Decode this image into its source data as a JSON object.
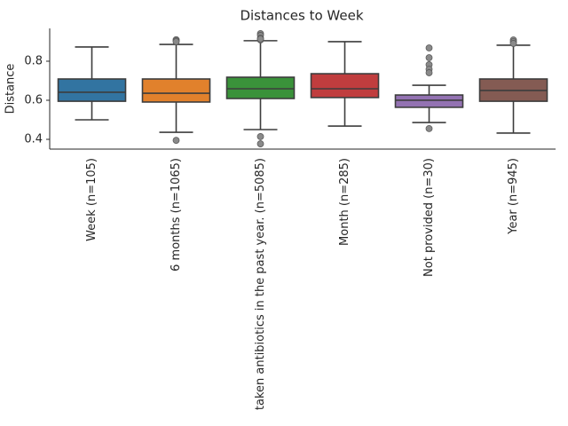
{
  "chart_data": {
    "type": "box",
    "title": "Distances to Week",
    "ylabel": "Distance",
    "categories": [
      "Week (n=105)",
      "6 months (n=1065)",
      "taken antibiotics in the past year. (n=5085)",
      "Month (n=285)",
      "Not provided (n=30)",
      "Year (n=945)"
    ],
    "colors": [
      "#3274a1",
      "#e1812c",
      "#3a923a",
      "#c03d3e",
      "#9372b2",
      "#845b53"
    ],
    "stats": [
      {
        "whislo": 0.5,
        "q1": 0.595,
        "med": 0.641,
        "q3": 0.709,
        "whishi": 0.873,
        "fliers": []
      },
      {
        "whislo": 0.436,
        "q1": 0.591,
        "med": 0.636,
        "q3": 0.709,
        "whishi": 0.886,
        "fliers": [
          0.91,
          0.905,
          0.9,
          0.395
        ]
      },
      {
        "whislo": 0.45,
        "q1": 0.609,
        "med": 0.659,
        "q3": 0.718,
        "whishi": 0.905,
        "fliers": [
          0.941,
          0.932,
          0.918,
          0.909,
          0.914,
          0.414,
          0.377
        ]
      },
      {
        "whislo": 0.468,
        "q1": 0.614,
        "med": 0.659,
        "q3": 0.736,
        "whishi": 0.9,
        "fliers": []
      },
      {
        "whislo": 0.486,
        "q1": 0.564,
        "med": 0.6,
        "q3": 0.627,
        "whishi": 0.677,
        "fliers": [
          0.868,
          0.818,
          0.782,
          0.759,
          0.741,
          0.455
        ]
      },
      {
        "whislo": 0.432,
        "q1": 0.595,
        "med": 0.65,
        "q3": 0.709,
        "whishi": 0.882,
        "fliers": [
          0.909,
          0.9,
          0.891
        ]
      }
    ],
    "ylim": [
      0.35,
      0.968
    ],
    "yticks": [
      0.4,
      0.6,
      0.8
    ]
  }
}
